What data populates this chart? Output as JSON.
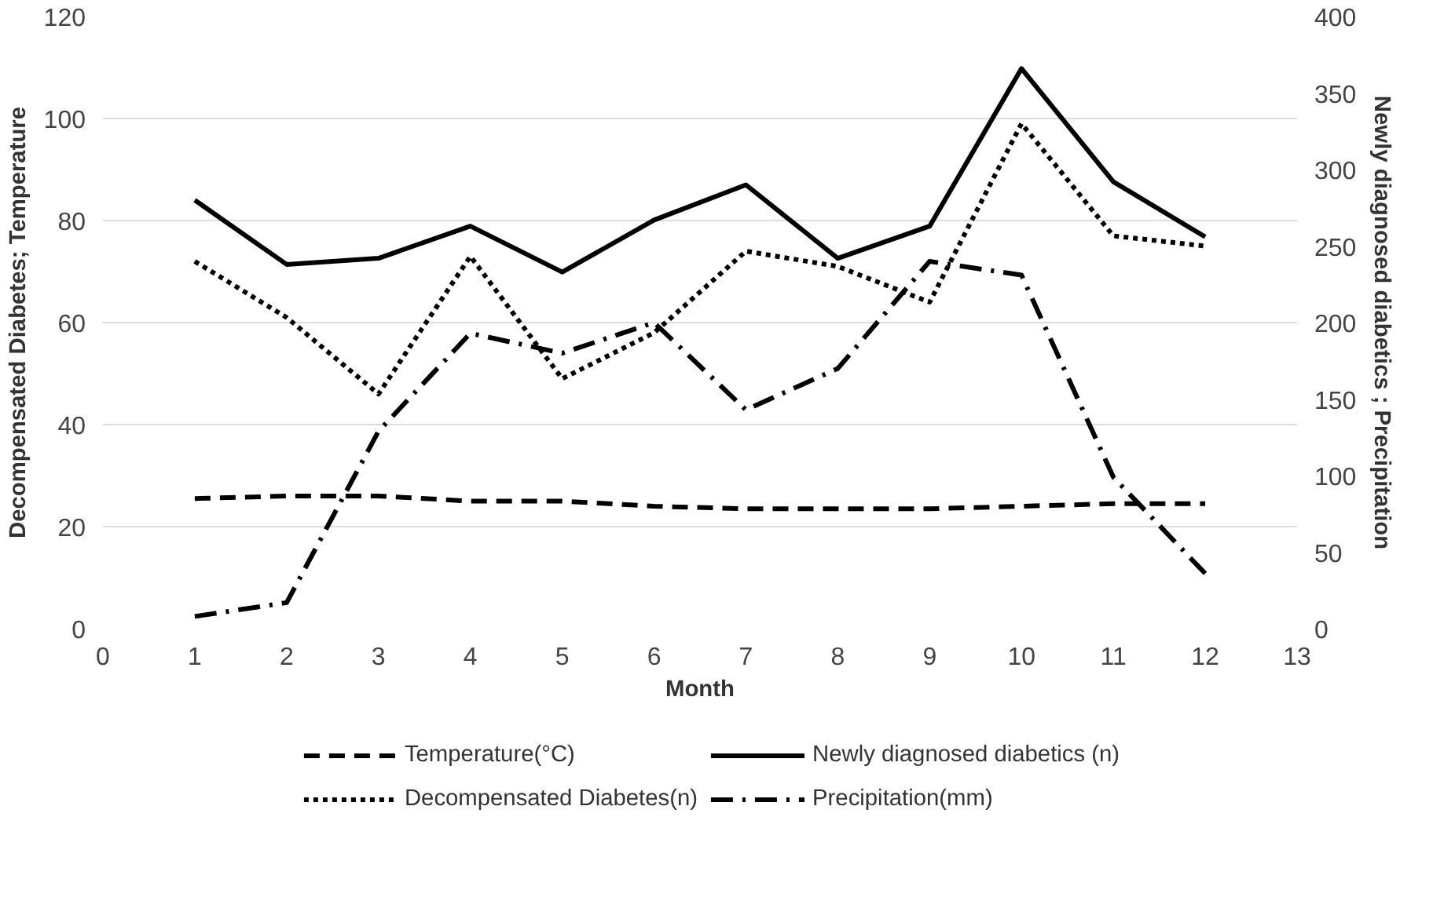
{
  "chart_data": {
    "type": "line",
    "xlabel": "Month",
    "ylabel": "Decompensated Diabetes; Temperature",
    "y2label": "Newly diagnosed diabetics ; Precipitation",
    "x": [
      1,
      2,
      3,
      4,
      5,
      6,
      7,
      8,
      9,
      10,
      11,
      12
    ],
    "xlim": [
      0,
      13
    ],
    "xticks": [
      0,
      1,
      2,
      3,
      4,
      5,
      6,
      7,
      8,
      9,
      10,
      11,
      12,
      13
    ],
    "ylim": [
      0,
      120
    ],
    "yticks": [
      0,
      20,
      40,
      60,
      80,
      100,
      120
    ],
    "y2lim": [
      0,
      400
    ],
    "y2ticks": [
      0,
      50,
      100,
      150,
      200,
      250,
      300,
      350,
      400
    ],
    "grid": "y",
    "legend": "bottom",
    "marker": "none",
    "series": [
      {
        "name": "Temperature(°C)",
        "color": "#000000",
        "line_style": "dashed",
        "values": [
          25.5,
          26,
          26,
          25,
          25,
          24,
          23.5,
          23.5,
          23.5,
          24,
          24.5,
          24.5
        ]
      },
      {
        "name": "Decompensated Diabetes(n)",
        "color": "#000000",
        "line_style": "dotted",
        "values": [
          72,
          61,
          46,
          73,
          49,
          58,
          74,
          71,
          64,
          99,
          77,
          75
        ]
      },
      {
        "name": "Newly diagnosed diabetics (n)",
        "color": "#000000",
        "line_style": "solid",
        "axis": "y2",
        "values": [
          280,
          238,
          242,
          263,
          233,
          267,
          290,
          242,
          263,
          366,
          292,
          256
        ]
      },
      {
        "name": "Precipitation(mm)",
        "color": "#000000",
        "line_style": "dashdot",
        "axis": "y2",
        "values": [
          8,
          17,
          129,
          193,
          180,
          200,
          143,
          170,
          240,
          231,
          99,
          36
        ]
      }
    ]
  }
}
